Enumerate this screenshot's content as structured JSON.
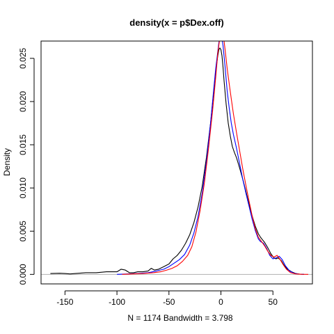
{
  "chart_data": {
    "type": "line",
    "title": "density(x = p$Dex.off)",
    "xlabel": "N = 1174   Bandwidth = 3.798",
    "ylabel": "Density",
    "xlim": [
      -173,
      88
    ],
    "ylim": [
      -0.0011,
      0.027
    ],
    "xticks": [
      {
        "value": -150,
        "label": "-150"
      },
      {
        "value": -100,
        "label": "-100"
      },
      {
        "value": -50,
        "label": "-50"
      },
      {
        "value": 0,
        "label": "0"
      },
      {
        "value": 50,
        "label": "50"
      }
    ],
    "yticks": [
      {
        "value": 0.0,
        "label": "0.000"
      },
      {
        "value": 0.005,
        "label": "0.005"
      },
      {
        "value": 0.01,
        "label": "0.010"
      },
      {
        "value": 0.015,
        "label": "0.015"
      },
      {
        "value": 0.02,
        "label": "0.020"
      },
      {
        "value": 0.025,
        "label": "0.025"
      }
    ],
    "baseline": {
      "y": 0,
      "color": "#b0b0b0"
    },
    "series": [
      {
        "name": "black",
        "color": "#000000",
        "x": [
          -164,
          -155,
          -150,
          -145,
          -140,
          -130,
          -120,
          -110,
          -105,
          -100,
          -96,
          -92,
          -88,
          -84,
          -80,
          -75,
          -70,
          -67,
          -64,
          -60,
          -55,
          -50,
          -46,
          -42,
          -38,
          -34,
          -30,
          -26,
          -22,
          -18,
          -14,
          -10,
          -7,
          -5,
          -3,
          -2,
          -1,
          0,
          1,
          2,
          3,
          5,
          7,
          9,
          11,
          13,
          15,
          18,
          21,
          24,
          27,
          30,
          33,
          36,
          38,
          40,
          42,
          45,
          48,
          51,
          53,
          55,
          58,
          61,
          64,
          68,
          72,
          76,
          80
        ],
        "y": [
          0.0001,
          0.00013,
          0.0001,
          5e-05,
          0.0001,
          0.0002,
          0.0002,
          0.0003,
          0.0003,
          0.0003,
          0.0006,
          0.0005,
          0.0002,
          0.0002,
          0.0003,
          0.0003,
          0.0004,
          0.0007,
          0.0005,
          0.0006,
          0.0009,
          0.0012,
          0.0018,
          0.0022,
          0.0028,
          0.0036,
          0.0046,
          0.006,
          0.0078,
          0.0102,
          0.0135,
          0.0175,
          0.021,
          0.0235,
          0.0253,
          0.026,
          0.0262,
          0.026,
          0.0253,
          0.024,
          0.0224,
          0.0197,
          0.0175,
          0.016,
          0.0148,
          0.0141,
          0.0135,
          0.0123,
          0.011,
          0.0096,
          0.0081,
          0.0068,
          0.0056,
          0.0047,
          0.0043,
          0.004,
          0.0037,
          0.0031,
          0.0024,
          0.0019,
          0.0018,
          0.0019,
          0.0016,
          0.001,
          0.0006,
          0.0003,
          0.0001,
          3e-05,
          0.0
        ]
      },
      {
        "name": "blue",
        "color": "#0000ff",
        "x": [
          -100,
          -90,
          -80,
          -70,
          -62,
          -55,
          -50,
          -45,
          -40,
          -35,
          -30,
          -26,
          -22,
          -18,
          -14,
          -10,
          -7,
          -5,
          -3,
          -2,
          -1,
          0,
          1,
          2,
          4,
          6,
          8,
          10,
          12,
          15,
          18,
          21,
          24,
          27,
          30,
          33,
          36,
          38,
          41,
          44,
          47,
          50,
          53,
          56,
          59,
          62,
          66,
          70,
          75,
          80
        ],
        "y": [
          0.0,
          5e-05,
          0.0001,
          0.0002,
          0.0004,
          0.0006,
          0.0009,
          0.0013,
          0.0017,
          0.0023,
          0.0034,
          0.0048,
          0.0067,
          0.0094,
          0.013,
          0.0175,
          0.0213,
          0.0238,
          0.0258,
          0.0268,
          0.0274,
          0.0275,
          0.0273,
          0.0265,
          0.024,
          0.0212,
          0.0192,
          0.0175,
          0.0162,
          0.0146,
          0.0128,
          0.011,
          0.0094,
          0.0079,
          0.0064,
          0.0051,
          0.0041,
          0.0038,
          0.0036,
          0.003,
          0.0022,
          0.0018,
          0.0019,
          0.0021,
          0.0017,
          0.001,
          0.0004,
          0.00015,
          3e-05,
          0.0
        ]
      },
      {
        "name": "red",
        "color": "#ff0000",
        "x": [
          -95,
          -85,
          -75,
          -65,
          -58,
          -52,
          -47,
          -42,
          -37,
          -32,
          -28,
          -24,
          -20,
          -16,
          -12,
          -8,
          -5,
          -3,
          -1,
          0,
          1,
          2,
          3,
          4,
          6,
          8,
          10,
          12,
          15,
          18,
          21,
          24,
          27,
          30,
          33,
          36,
          39,
          42,
          45,
          48,
          51,
          54,
          57,
          60,
          63,
          67,
          72,
          78,
          84
        ],
        "y": [
          0.0,
          5e-05,
          0.0001,
          0.0002,
          0.0003,
          0.0005,
          0.0007,
          0.001,
          0.0015,
          0.0022,
          0.0032,
          0.0049,
          0.0074,
          0.0105,
          0.0145,
          0.019,
          0.0228,
          0.0256,
          0.0274,
          0.0278,
          0.0279,
          0.0276,
          0.027,
          0.026,
          0.0238,
          0.022,
          0.0203,
          0.0186,
          0.0164,
          0.0143,
          0.0122,
          0.0103,
          0.0085,
          0.0068,
          0.0053,
          0.0043,
          0.0038,
          0.0033,
          0.0027,
          0.0022,
          0.002,
          0.0022,
          0.0017,
          0.0011,
          0.0006,
          0.0002,
          5e-05,
          1e-05,
          0.0
        ]
      }
    ]
  }
}
